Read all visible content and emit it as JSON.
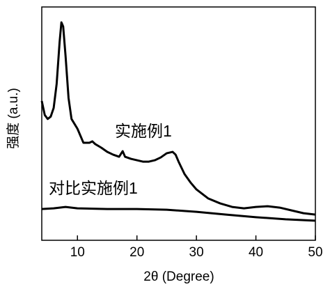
{
  "chart_data": {
    "type": "line",
    "x_label": "2θ (Degree)",
    "y_label": "强度 (a.u.)",
    "xlim": [
      4,
      50
    ],
    "xticks": [
      10,
      20,
      30,
      40,
      50
    ],
    "ylim": [
      0,
      100
    ],
    "series": [
      {
        "name": "实施例1",
        "color": "#000000",
        "x": [
          4,
          4.5,
          5,
          5.5,
          6,
          6.5,
          7,
          7.3,
          7.6,
          8,
          8.5,
          9,
          10,
          11,
          12,
          12.5,
          13,
          14,
          15,
          16,
          17,
          17.6,
          18,
          19,
          20,
          21,
          22,
          23,
          24,
          25,
          26,
          26.5,
          27,
          28,
          29,
          30,
          32,
          34,
          36,
          38,
          40,
          42,
          44,
          46,
          48,
          50
        ],
        "values": [
          59.7,
          53.7,
          52,
          53,
          56.7,
          67,
          85,
          93.4,
          91.6,
          79,
          61,
          52,
          47.8,
          41.8,
          41.8,
          42.4,
          41.2,
          39.7,
          37.9,
          36.7,
          35.8,
          38.2,
          35.8,
          34.9,
          34.3,
          33.7,
          33.7,
          34.3,
          35.5,
          37.3,
          37.9,
          36.7,
          33.7,
          28.4,
          24.8,
          21.8,
          17.9,
          15.8,
          14.3,
          13.7,
          14.3,
          14.6,
          14,
          12.8,
          11.6,
          11
        ]
      },
      {
        "name": "对比实施例1",
        "color": "#000000",
        "x": [
          4,
          6,
          8,
          10,
          15,
          20,
          25,
          30,
          35,
          40,
          45,
          50
        ],
        "values": [
          13.4,
          13.7,
          14.3,
          13.7,
          13.4,
          13.4,
          13.1,
          12.2,
          11,
          9.9,
          9,
          8.4
        ]
      }
    ]
  }
}
